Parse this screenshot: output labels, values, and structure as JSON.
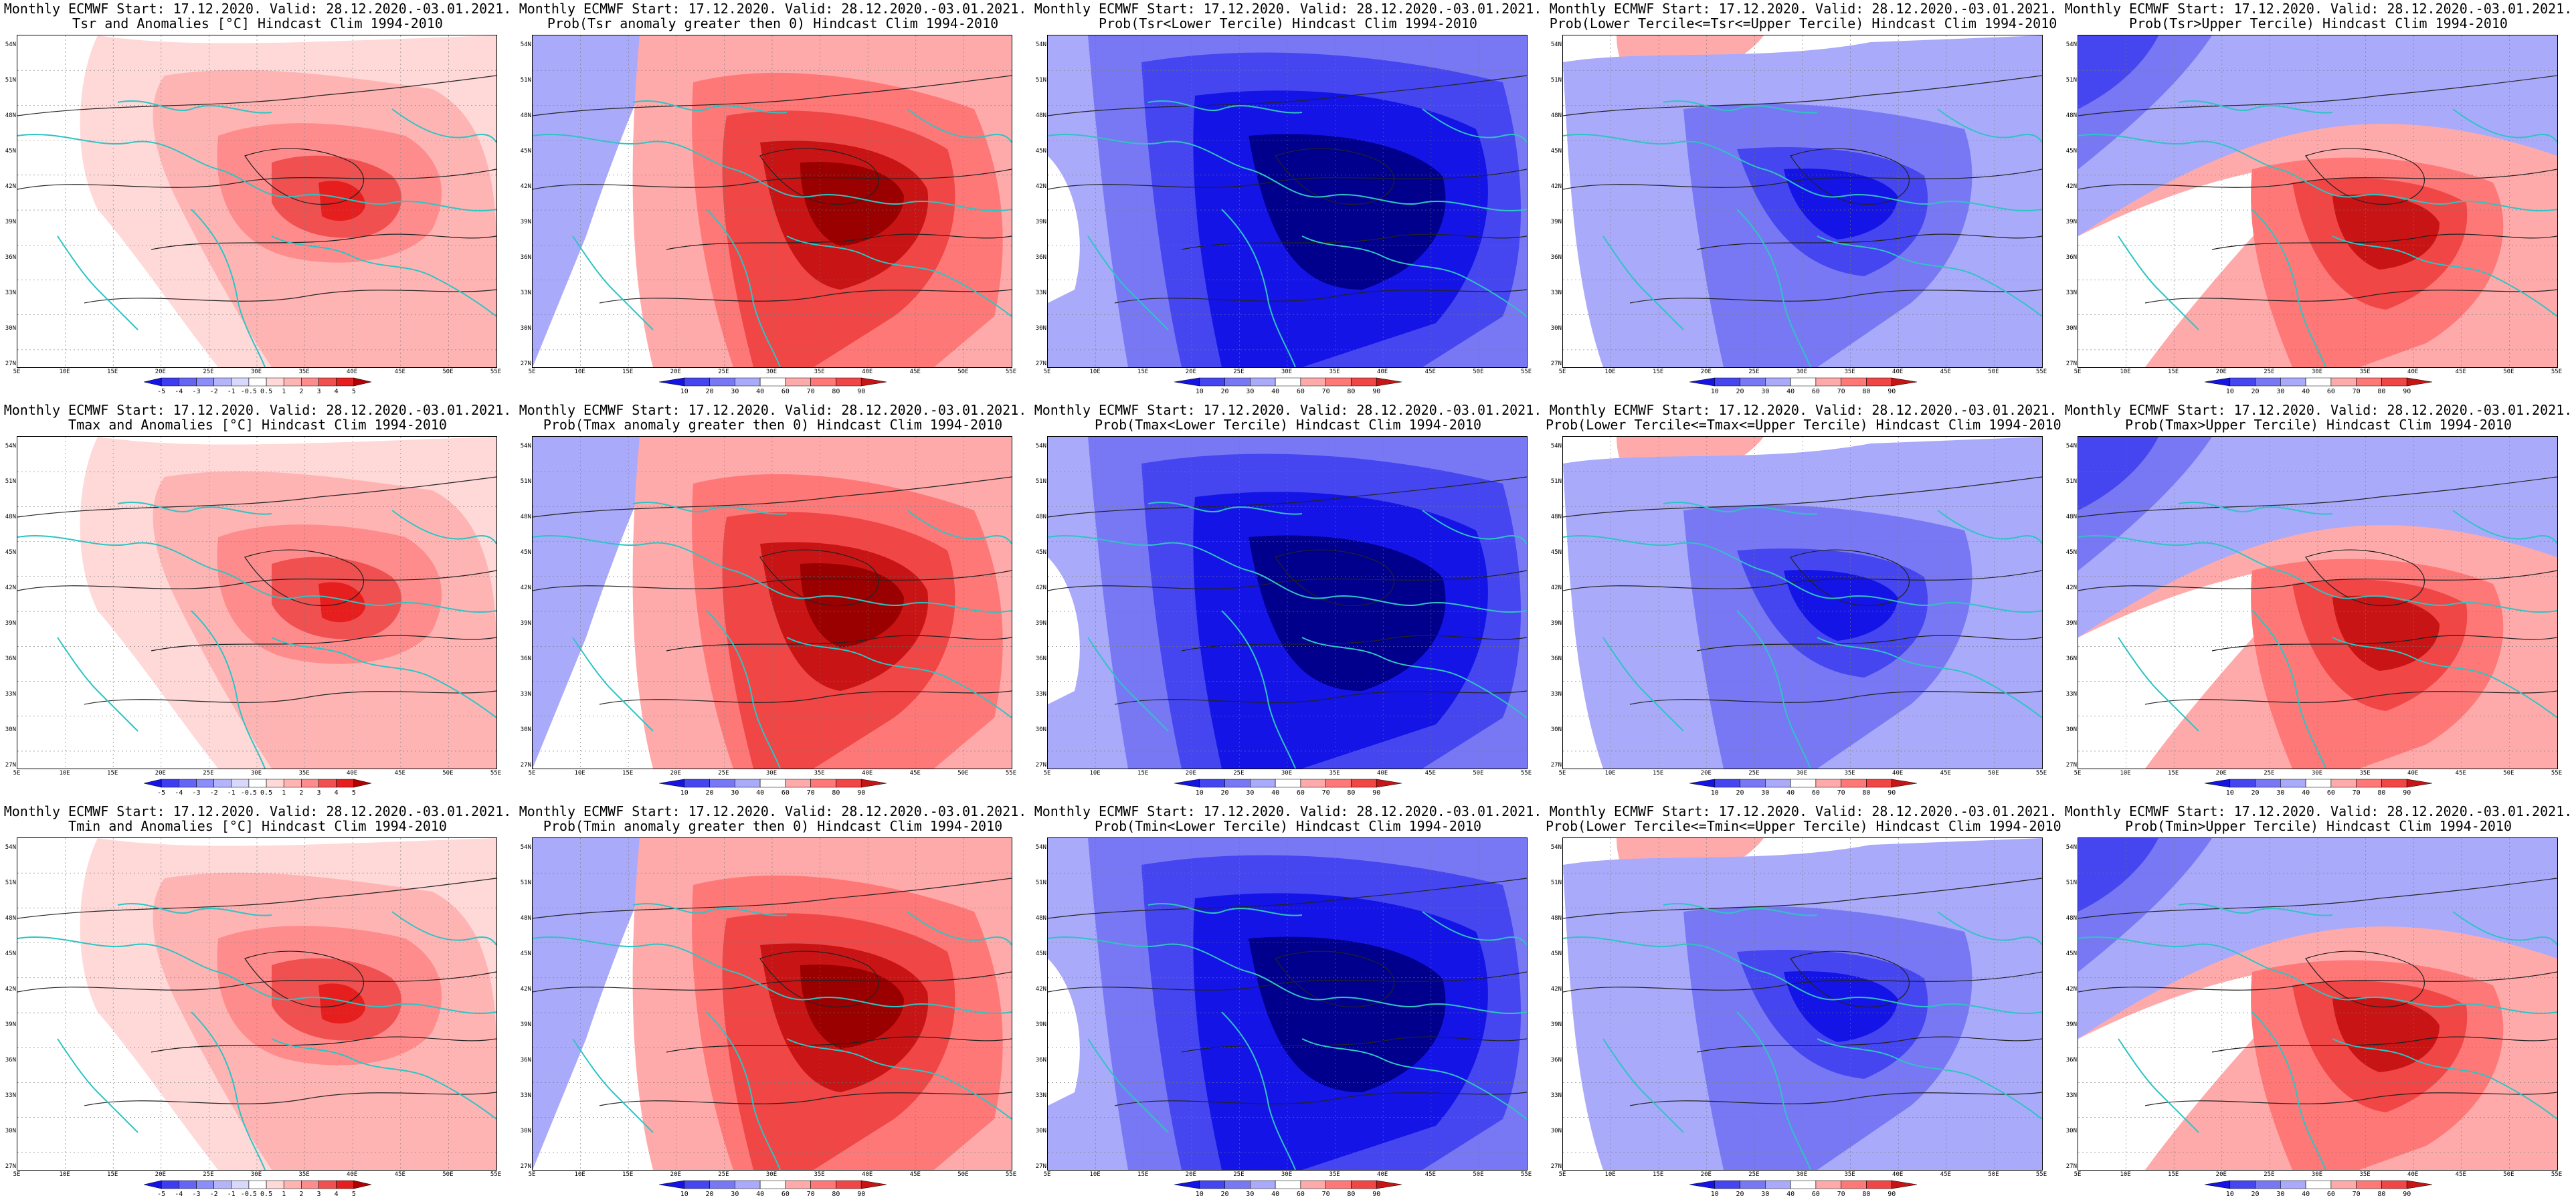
{
  "header": "Monthly ECMWF Start: 17.12.2020. Valid: 28.12.2020.-03.01.2021.",
  "lat_labels": [
    "54N",
    "51N",
    "48N",
    "45N",
    "42N",
    "39N",
    "36N",
    "33N",
    "30N",
    "27N"
  ],
  "lon_labels": [
    "5E",
    "10E",
    "15E",
    "20E",
    "25E",
    "30E",
    "35E",
    "40E",
    "45E",
    "50E",
    "55E"
  ],
  "colorbars": {
    "anomaly": {
      "ticks": [
        "-5",
        "-4",
        "-3",
        "-2",
        "-1",
        "-0.5",
        "0.5",
        "1",
        "2",
        "3",
        "4",
        "5"
      ],
      "colors": [
        "#1414e6",
        "#3c3cf0",
        "#6464f5",
        "#8c8cfa",
        "#b4b4fa",
        "#d8d8fc",
        "#ffffff",
        "#ffd8d8",
        "#ffb4b4",
        "#ff8c8c",
        "#f05050",
        "#e61e1e",
        "#b40000"
      ]
    },
    "probability": {
      "ticks": [
        "10",
        "20",
        "30",
        "40",
        "60",
        "70",
        "80",
        "90"
      ],
      "colors": [
        "#1414e6",
        "#4646f0",
        "#7878f5",
        "#aaaafa",
        "#ffffff",
        "#ffaaaa",
        "#ff7878",
        "#f04646",
        "#c81414"
      ]
    }
  },
  "panels": [
    {
      "title": "Tsr and Anomalies [°C] Hindcast Clim 1994-2010",
      "colorbar": "anomaly",
      "pattern": "warm"
    },
    {
      "title": "Prob(Tsr anomaly greater then 0) Hindcast Clim 1994-2010",
      "colorbar": "probability",
      "pattern": "hot"
    },
    {
      "title": "Prob(Tsr<Lower Tercile) Hindcast Clim 1994-2010",
      "colorbar": "probability",
      "pattern": "cold"
    },
    {
      "title": "Prob(Lower Tercile<=Tsr<=Upper Tercile) Hindcast Clim 1994-2010",
      "colorbar": "probability",
      "pattern": "mid"
    },
    {
      "title": "Prob(Tsr>Upper Tercile) Hindcast Clim 1994-2010",
      "colorbar": "probability",
      "pattern": "upper"
    },
    {
      "title": "Tmax and Anomalies [°C] Hindcast Clim 1994-2010",
      "colorbar": "anomaly",
      "pattern": "warm"
    },
    {
      "title": "Prob(Tmax anomaly greater then 0) Hindcast Clim 1994-2010",
      "colorbar": "probability",
      "pattern": "hot"
    },
    {
      "title": "Prob(Tmax<Lower Tercile) Hindcast Clim 1994-2010",
      "colorbar": "probability",
      "pattern": "cold"
    },
    {
      "title": "Prob(Lower Tercile<=Tmax<=Upper Tercile) Hindcast Clim 1994-2010",
      "colorbar": "probability",
      "pattern": "mid"
    },
    {
      "title": "Prob(Tmax>Upper Tercile) Hindcast Clim 1994-2010",
      "colorbar": "probability",
      "pattern": "upper"
    },
    {
      "title": "Tmin and Anomalies [°C] Hindcast Clim 1994-2010",
      "colorbar": "anomaly",
      "pattern": "warm"
    },
    {
      "title": "Prob(Tmin anomaly greater then 0) Hindcast Clim 1994-2010",
      "colorbar": "probability",
      "pattern": "hot"
    },
    {
      "title": "Prob(Tmin<Lower Tercile) Hindcast Clim 1994-2010",
      "colorbar": "probability",
      "pattern": "cold"
    },
    {
      "title": "Prob(Lower Tercile<=Tmin<=Upper Tercile) Hindcast Clim 1994-2010",
      "colorbar": "probability",
      "pattern": "mid"
    },
    {
      "title": "Prob(Tmin>Upper Tercile) Hindcast Clim 1994-2010",
      "colorbar": "probability",
      "pattern": "upper"
    }
  ]
}
